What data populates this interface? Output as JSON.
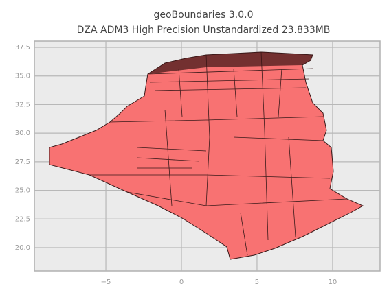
{
  "chart_data": {
    "type": "map",
    "title": "geoBoundaries 3.0.0",
    "subtitle": "DZA ADM3 High Precision Unstandardized 23.833MB",
    "xlim": [
      -9.73,
      13.14
    ],
    "ylim": [
      17.96,
      38.04
    ],
    "xticks": [
      {
        "value": -5,
        "label": "−5"
      },
      0,
      5,
      10
    ],
    "yticks": [
      {
        "value": 20,
        "label": "20.0"
      },
      22.5,
      {
        "value": 25,
        "label": "25.0"
      },
      27.5,
      {
        "value": 30,
        "label": "30.0"
      },
      32.5,
      {
        "value": 35,
        "label": "35.0"
      },
      37.5
    ],
    "grid": true,
    "color": "#f87272"
  }
}
